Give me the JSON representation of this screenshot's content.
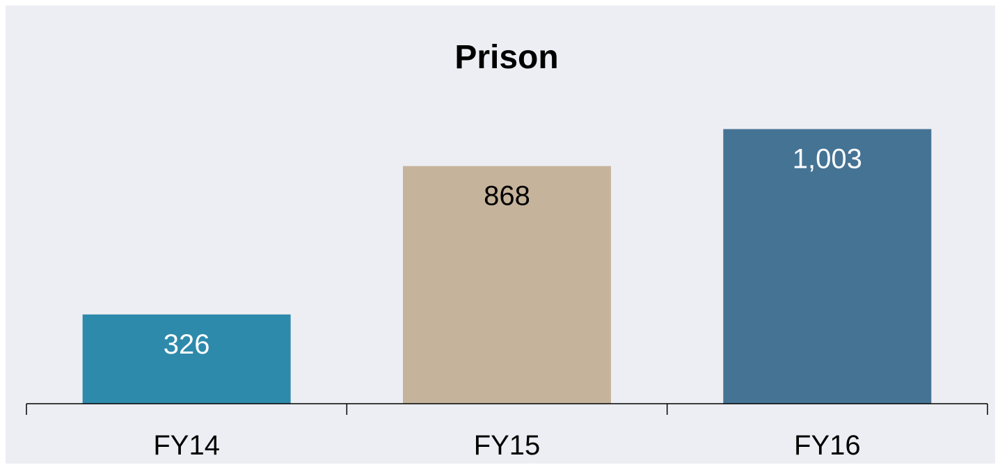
{
  "chart_data": {
    "type": "bar",
    "title": "Prison",
    "categories": [
      "FY14",
      "FY15",
      "FY16"
    ],
    "values": [
      326,
      868,
      1003
    ],
    "value_labels": [
      "326",
      "868",
      "1,003"
    ],
    "bar_colors": [
      "#2e8aab",
      "#c6b39b",
      "#457394"
    ],
    "label_colors": [
      "#ffffff",
      "#000000",
      "#ffffff"
    ],
    "background_color": "#edeef3",
    "xlabel": "",
    "ylabel": "",
    "ylim": [
      0,
      1200
    ],
    "grid": false,
    "legend": "none"
  }
}
